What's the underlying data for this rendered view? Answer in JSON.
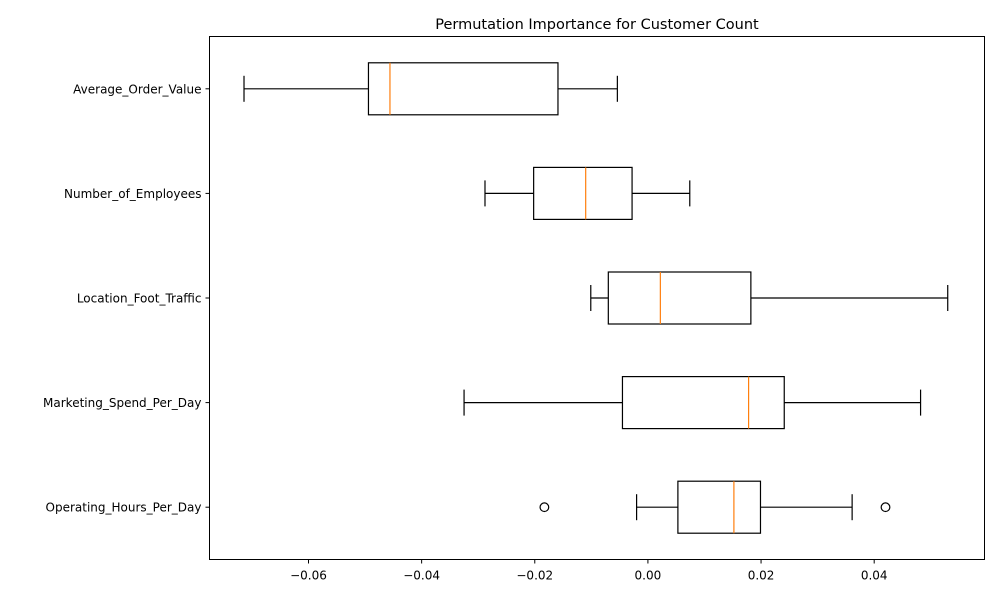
{
  "chart_data": {
    "type": "boxplot",
    "orientation": "horizontal",
    "title": "Permutation Importance for Customer Count",
    "xlabel": "",
    "ylabel": "",
    "xlim": [
      -0.0775,
      0.0595
    ],
    "x_ticks": [
      -0.06,
      -0.04,
      -0.02,
      0.0,
      0.02,
      0.04
    ],
    "x_tick_labels": [
      "−0.06",
      "−0.04",
      "−0.02",
      "0.00",
      "0.02",
      "0.04"
    ],
    "grid": false,
    "categories": [
      "Average_Order_Value",
      "Number_of_Employees",
      "Location_Foot_Traffic",
      "Marketing_Spend_Per_Day",
      "Operating_Hours_Per_Day"
    ],
    "boxes": [
      {
        "label": "Average_Order_Value",
        "whisker_low": -0.0714,
        "q1": -0.0494,
        "median": -0.0456,
        "q3": -0.0159,
        "whisker_high": -0.0054,
        "outliers": []
      },
      {
        "label": "Number_of_Employees",
        "whisker_low": -0.0288,
        "q1": -0.0202,
        "median": -0.011,
        "q3": -0.0028,
        "whisker_high": 0.0074,
        "outliers": []
      },
      {
        "label": "Location_Foot_Traffic",
        "whisker_low": -0.0101,
        "q1": -0.007,
        "median": 0.0022,
        "q3": 0.0182,
        "whisker_high": 0.053,
        "outliers": []
      },
      {
        "label": "Marketing_Spend_Per_Day",
        "whisker_low": -0.0325,
        "q1": -0.0045,
        "median": 0.0178,
        "q3": 0.0241,
        "whisker_high": 0.0482,
        "outliers": []
      },
      {
        "label": "Operating_Hours_Per_Day",
        "whisker_low": -0.002,
        "q1": 0.0053,
        "median": 0.0152,
        "q3": 0.0199,
        "whisker_high": 0.0361,
        "outliers": [
          -0.0183,
          0.042
        ]
      }
    ],
    "colors": {
      "box": "#000000",
      "median": "#ff7f0e",
      "whisker": "#000000",
      "outlier": "#000000",
      "background": "#ffffff"
    }
  }
}
